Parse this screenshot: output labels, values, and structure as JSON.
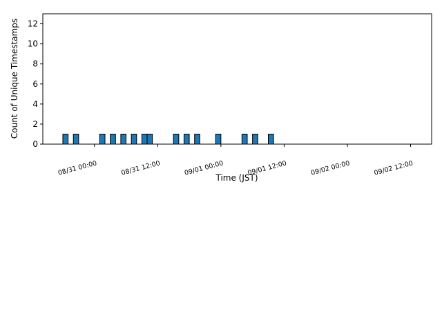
{
  "chart_data": {
    "type": "histogram",
    "x_label": "Time (JST)",
    "y_label": "Count of Unique Timestamps",
    "bins": [
      "08/30 18:00",
      "08/30 19:00",
      "08/30 20:00",
      "08/30 21:00",
      "08/30 22:00",
      "08/30 23:00",
      "08/31 00:00",
      "08/31 01:00",
      "08/31 02:00",
      "08/31 03:00",
      "08/31 04:00",
      "08/31 05:00",
      "08/31 06:00",
      "08/31 07:00",
      "08/31 08:00",
      "08/31 09:00",
      "08/31 10:00",
      "08/31 11:00",
      "08/31 12:00",
      "08/31 13:00",
      "08/31 14:00",
      "08/31 15:00",
      "08/31 16:00",
      "08/31 17:00",
      "08/31 18:00",
      "08/31 19:00",
      "08/31 20:00",
      "08/31 21:00",
      "08/31 22:00",
      "08/31 23:00",
      "09/01 00:00",
      "09/01 01:00",
      "09/01 02:00",
      "09/01 03:00",
      "09/01 04:00",
      "09/01 05:00",
      "09/01 06:00",
      "09/01 07:00",
      "09/01 08:00",
      "09/01 09:00",
      "09/01 10:00",
      "09/01 11:00",
      "09/01 12:00",
      "09/01 13:00",
      "09/01 14:00",
      "09/01 15:00",
      "09/01 16:00",
      "09/01 17:00",
      "09/01 18:00",
      "09/01 19:00",
      "09/01 20:00",
      "09/01 21:00",
      "09/01 22:00",
      "09/01 23:00",
      "09/02 00:00",
      "09/02 01:00",
      "09/02 02:00",
      "09/02 03:00",
      "09/02 04:00",
      "09/02 05:00",
      "09/02 06:00",
      "09/02 07:00",
      "09/02 08:00",
      "09/02 09:00",
      "09/02 10:00",
      "09/02 11:00",
      "09/02 12:00",
      "09/02 13:00",
      "09/02 14:00"
    ],
    "values": [
      1,
      0,
      1,
      0,
      0,
      0,
      0,
      1,
      0,
      1,
      0,
      1,
      0,
      1,
      0,
      1,
      1,
      0,
      0,
      0,
      0,
      1,
      0,
      1,
      0,
      1,
      0,
      0,
      0,
      1,
      0,
      0,
      0,
      0,
      1,
      0,
      1,
      0,
      0,
      1,
      0,
      0,
      0,
      0,
      0,
      0,
      0,
      0,
      0,
      0,
      0,
      0,
      0,
      0,
      0,
      0,
      0,
      0,
      0,
      0,
      0,
      0,
      0,
      0,
      0,
      0,
      0,
      0
    ],
    "color": "#1f77b4",
    "edgecolor": "#000000",
    "xlim": [
      "08/30 14:12",
      "09/02 16:00"
    ],
    "xticks": [
      "08/31 00:00",
      "08/31 12:00",
      "09/01 00:00",
      "09/01 12:00",
      "09/02 00:00",
      "09/02 12:00"
    ],
    "ylim": [
      0,
      13
    ],
    "yticks": [
      0,
      2,
      4,
      6,
      8,
      10,
      12
    ]
  }
}
